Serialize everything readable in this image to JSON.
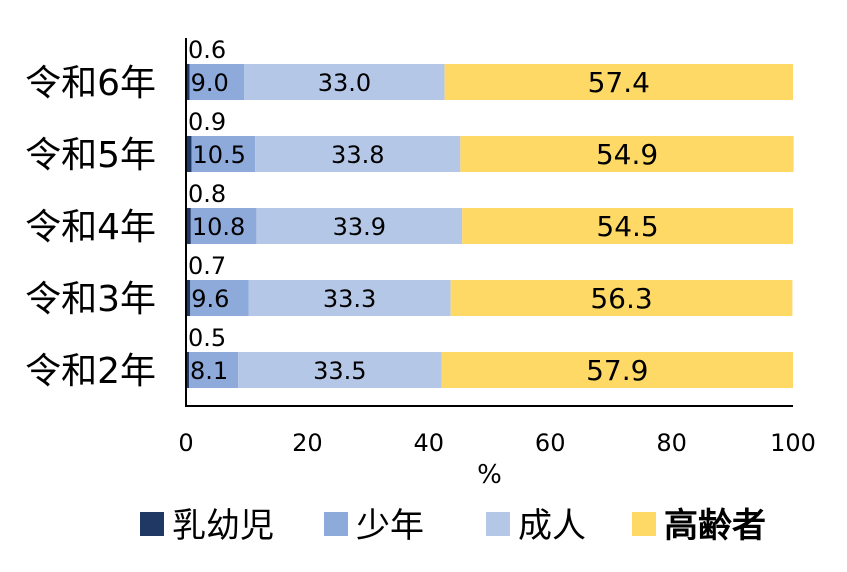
{
  "chart_data": {
    "type": "bar",
    "orientation": "horizontal",
    "stacked": true,
    "categories": [
      "令和6年",
      "令和5年",
      "令和4年",
      "令和3年",
      "令和2年"
    ],
    "series": [
      {
        "name": "乳幼児",
        "color": "#1f3864",
        "values": [
          0.6,
          0.9,
          0.8,
          0.7,
          0.5
        ]
      },
      {
        "name": "少年",
        "color": "#8eaadb",
        "values": [
          9.0,
          10.5,
          10.8,
          9.6,
          8.1
        ]
      },
      {
        "name": "成人",
        "color": "#b4c7e7",
        "values": [
          33.0,
          33.8,
          33.9,
          33.3,
          33.5
        ]
      },
      {
        "name": "高齢者",
        "color": "#ffd966",
        "values": [
          57.4,
          54.9,
          54.5,
          56.3,
          57.9
        ]
      }
    ],
    "value_labels": [
      [
        "0.6",
        "9.0",
        "33.0",
        "57.4"
      ],
      [
        "0.9",
        "10.5",
        "33.8",
        "54.9"
      ],
      [
        "0.8",
        "10.8",
        "33.9",
        "54.5"
      ],
      [
        "0.7",
        "9.6",
        "33.3",
        "56.3"
      ],
      [
        "0.5",
        "8.1",
        "33.5",
        "57.9"
      ]
    ],
    "xlabel": "%",
    "xlim": [
      0,
      100
    ],
    "xticks": [
      "0",
      "20",
      "40",
      "60",
      "80",
      "100"
    ],
    "grid": false,
    "legend_position": "bottom"
  }
}
